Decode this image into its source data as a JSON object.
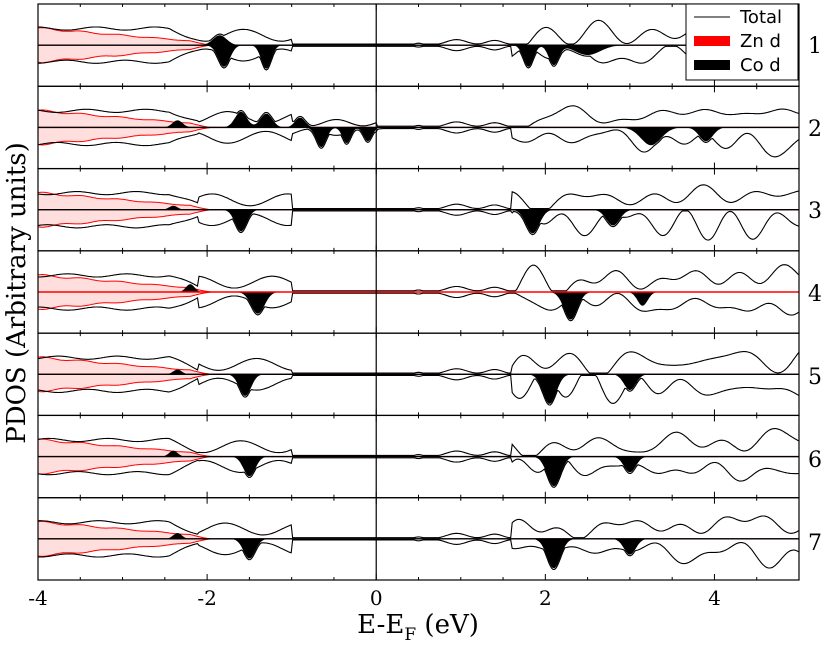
{
  "chart_data": {
    "type": "line",
    "title": "",
    "xlabel_main": "E-E",
    "xlabel_sub": "F",
    "xlabel_unit": " (eV)",
    "ylabel": "PDOS (Arbitrary units)",
    "xlim": [
      -4,
      5
    ],
    "xticks": [
      -4,
      -2,
      0,
      2,
      4
    ],
    "xtick_labels": [
      "-4",
      "-2",
      "0",
      "2",
      "4"
    ],
    "fermi_level": 0,
    "legend_position": "top-right",
    "legend": [
      {
        "name": "Total",
        "style": "line",
        "color": "#000000"
      },
      {
        "name": "Zn d",
        "style": "fill",
        "color": "#ff0000"
      },
      {
        "name": "Co d",
        "style": "fill",
        "color": "#000000"
      }
    ],
    "colors": {
      "total": "#000000",
      "zn": "#ff0000",
      "co": "#000000",
      "zn_fill": "#ffdede"
    },
    "panels": [
      {
        "label": "1",
        "co_peaks_up": [
          [
            -1.85,
            0.25,
            0.08
          ]
        ],
        "co_peaks_down": [
          [
            -1.8,
            0.55,
            0.07
          ],
          [
            -1.3,
            0.6,
            0.06
          ],
          [
            1.8,
            0.55,
            0.06
          ],
          [
            2.1,
            0.5,
            0.06
          ],
          [
            2.5,
            0.25,
            0.15
          ]
        ],
        "highlight_baseline": false
      },
      {
        "label": "2",
        "co_peaks_up": [
          [
            -2.35,
            0.18,
            0.06
          ],
          [
            -1.6,
            0.4,
            0.07
          ],
          [
            -1.3,
            0.35,
            0.07
          ],
          [
            -0.9,
            0.25,
            0.06
          ]
        ],
        "co_peaks_down": [
          [
            -0.65,
            0.5,
            0.06
          ],
          [
            -0.35,
            0.4,
            0.05
          ],
          [
            -0.1,
            0.35,
            0.05
          ],
          [
            3.25,
            0.45,
            0.12
          ],
          [
            3.9,
            0.35,
            0.08
          ]
        ],
        "highlight_baseline": false
      },
      {
        "label": "3",
        "co_peaks_up": [
          [
            -2.4,
            0.1,
            0.05
          ]
        ],
        "co_peaks_down": [
          [
            -1.6,
            0.55,
            0.07
          ],
          [
            1.85,
            0.6,
            0.08
          ],
          [
            2.8,
            0.4,
            0.08
          ]
        ],
        "highlight_baseline": false
      },
      {
        "label": "4",
        "co_peaks_up": [
          [
            -2.2,
            0.2,
            0.05
          ]
        ],
        "co_peaks_down": [
          [
            -1.4,
            0.55,
            0.08
          ],
          [
            2.3,
            0.7,
            0.08
          ],
          [
            3.15,
            0.35,
            0.06
          ]
        ],
        "highlight_baseline": true
      },
      {
        "label": "5",
        "co_peaks_up": [
          [
            -2.35,
            0.12,
            0.05
          ]
        ],
        "co_peaks_down": [
          [
            -1.55,
            0.55,
            0.07
          ],
          [
            2.05,
            0.75,
            0.08
          ],
          [
            3.0,
            0.4,
            0.07
          ]
        ],
        "highlight_baseline": false
      },
      {
        "label": "6",
        "co_peaks_up": [
          [
            -2.4,
            0.15,
            0.05
          ]
        ],
        "co_peaks_down": [
          [
            -1.5,
            0.5,
            0.07
          ],
          [
            2.1,
            0.75,
            0.08
          ],
          [
            3.0,
            0.4,
            0.07
          ]
        ],
        "highlight_baseline": false
      },
      {
        "label": "7",
        "co_peaks_up": [
          [
            -2.35,
            0.15,
            0.05
          ]
        ],
        "co_peaks_down": [
          [
            -1.5,
            0.5,
            0.07
          ],
          [
            2.1,
            0.75,
            0.08
          ],
          [
            3.0,
            0.4,
            0.07
          ]
        ],
        "highlight_baseline": false
      }
    ]
  }
}
